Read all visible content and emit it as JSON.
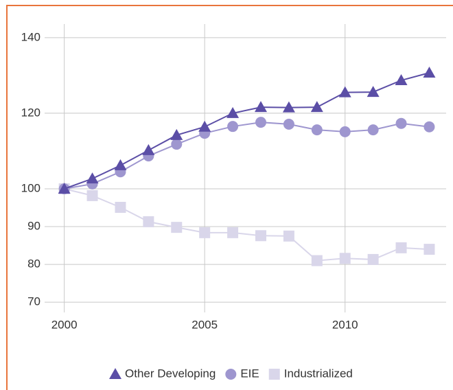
{
  "chart_data": {
    "type": "line",
    "x": [
      2000,
      2001,
      2002,
      2003,
      2004,
      2005,
      2006,
      2007,
      2008,
      2009,
      2010,
      2011,
      2012,
      2013
    ],
    "series": [
      {
        "name": "Other Developing",
        "color": "#5b4ea6",
        "marker": "triangle",
        "values": [
          100,
          102.7,
          106.2,
          110.2,
          114.2,
          116.4,
          120,
          121.6,
          121.5,
          121.6,
          125.5,
          125.6,
          128.7,
          130.7
        ]
      },
      {
        "name": "EIE",
        "color": "#9e96cf",
        "marker": "circle",
        "values": [
          100,
          101.3,
          104.5,
          108.7,
          111.8,
          114.7,
          116.5,
          117.6,
          117.1,
          115.6,
          115.1,
          115.6,
          117.3,
          116.4
        ]
      },
      {
        "name": "Industrialized",
        "color": "#d9d6ea",
        "marker": "square",
        "values": [
          100,
          98.2,
          95.1,
          91.3,
          89.8,
          88.4,
          88.4,
          87.6,
          87.5,
          81,
          81.6,
          81.3,
          84.4,
          84
        ]
      }
    ],
    "xlim": [
      1999.3,
      2013.6
    ],
    "xticks": [
      2000,
      2005,
      2010
    ],
    "ylim": [
      67.3,
      143.6
    ],
    "yticks": [
      70,
      80,
      90,
      100,
      120,
      140
    ],
    "grid": true,
    "legend": "bottom"
  }
}
